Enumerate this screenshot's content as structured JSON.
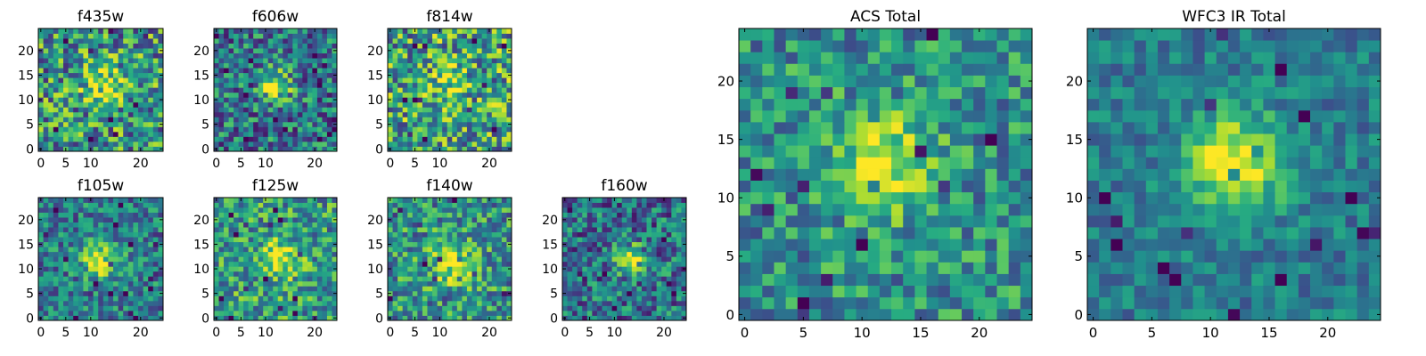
{
  "chart_data": [
    {
      "type": "heatmap",
      "title": "f435w",
      "xticks": [
        "0",
        "5",
        "10",
        "20"
      ],
      "yticks": [
        "0",
        "5",
        "10",
        "15",
        "20"
      ],
      "xlim": [
        0,
        25
      ],
      "ylim": [
        0,
        25
      ],
      "peak": [
        13,
        13
      ],
      "peak_strength": 0.35,
      "sigma": 3.0,
      "noise": 0.5,
      "base": 0.52,
      "seed": 11
    },
    {
      "type": "heatmap",
      "title": "f606w",
      "xticks": [
        "0",
        "5",
        "10",
        "20"
      ],
      "yticks": [
        "0",
        "5",
        "10",
        "15",
        "20"
      ],
      "xlim": [
        0,
        25
      ],
      "ylim": [
        0,
        25
      ],
      "peak": [
        12,
        13
      ],
      "peak_strength": 0.55,
      "sigma": 2.2,
      "noise": 0.42,
      "base": 0.4,
      "seed": 22
    },
    {
      "type": "heatmap",
      "title": "f814w",
      "xticks": [
        "0",
        "5",
        "10",
        "20"
      ],
      "yticks": [
        "0",
        "5",
        "10",
        "15",
        "20"
      ],
      "xlim": [
        0,
        25
      ],
      "ylim": [
        0,
        25
      ],
      "peak": [
        12,
        14
      ],
      "peak_strength": 0.3,
      "sigma": 2.2,
      "noise": 0.5,
      "base": 0.58,
      "seed": 33
    },
    {
      "type": "heatmap",
      "title": "f105w",
      "xticks": [
        "0",
        "5",
        "10",
        "20"
      ],
      "yticks": [
        "0",
        "5",
        "10",
        "15",
        "20"
      ],
      "xlim": [
        0,
        25
      ],
      "ylim": [
        0,
        25
      ],
      "peak": [
        12,
        12
      ],
      "peak_strength": 0.55,
      "sigma": 2.6,
      "noise": 0.35,
      "base": 0.42,
      "seed": 44
    },
    {
      "type": "heatmap",
      "title": "f125w",
      "xticks": [
        "0",
        "5",
        "10",
        "20"
      ],
      "yticks": [
        "0",
        "5",
        "10",
        "15",
        "20"
      ],
      "xlim": [
        0,
        25
      ],
      "ylim": [
        0,
        25
      ],
      "peak": [
        13,
        12
      ],
      "peak_strength": 0.4,
      "sigma": 2.8,
      "noise": 0.4,
      "base": 0.55,
      "seed": 55
    },
    {
      "type": "heatmap",
      "title": "f140w",
      "xticks": [
        "0",
        "5",
        "10",
        "20"
      ],
      "yticks": [
        "0",
        "5",
        "10",
        "15",
        "20"
      ],
      "xlim": [
        0,
        25
      ],
      "ylim": [
        0,
        25
      ],
      "peak": [
        13,
        11
      ],
      "peak_strength": 0.4,
      "sigma": 3.0,
      "noise": 0.4,
      "base": 0.52,
      "seed": 66
    },
    {
      "type": "heatmap",
      "title": "f160w",
      "xticks": [
        "0",
        "5",
        "10",
        "20"
      ],
      "yticks": [
        "0",
        "5",
        "10",
        "15",
        "20"
      ],
      "xlim": [
        0,
        25
      ],
      "ylim": [
        0,
        25
      ],
      "peak": [
        13,
        12
      ],
      "peak_strength": 0.55,
      "sigma": 2.0,
      "noise": 0.4,
      "base": 0.38,
      "seed": 77
    },
    {
      "type": "heatmap",
      "title": "ACS Total",
      "xticks": [
        "0",
        "5",
        "10",
        "15",
        "20"
      ],
      "yticks": [
        "0",
        "5",
        "10",
        "15",
        "20"
      ],
      "xlim": [
        0,
        25
      ],
      "ylim": [
        0,
        25
      ],
      "peak": [
        12,
        13
      ],
      "peak_strength": 0.5,
      "sigma": 2.8,
      "noise": 0.34,
      "base": 0.5,
      "seed": 88
    },
    {
      "type": "heatmap",
      "title": "WFC3 IR Total",
      "xticks": [
        "0",
        "5",
        "10",
        "15",
        "20"
      ],
      "yticks": [
        "0",
        "5",
        "10",
        "15",
        "20"
      ],
      "xlim": [
        0,
        25
      ],
      "ylim": [
        0,
        25
      ],
      "peak": [
        12,
        13
      ],
      "peak_strength": 0.58,
      "sigma": 3.0,
      "noise": 0.22,
      "base": 0.42,
      "seed": 99
    }
  ],
  "colormap": "viridis"
}
